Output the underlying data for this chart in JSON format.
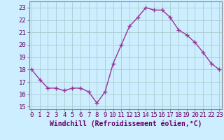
{
  "x": [
    0,
    1,
    2,
    3,
    4,
    5,
    6,
    7,
    8,
    9,
    10,
    11,
    12,
    13,
    14,
    15,
    16,
    17,
    18,
    19,
    20,
    21,
    22,
    23
  ],
  "y": [
    18.0,
    17.2,
    16.5,
    16.5,
    16.3,
    16.5,
    16.5,
    16.2,
    15.3,
    16.2,
    18.5,
    20.0,
    21.5,
    22.2,
    23.0,
    22.8,
    22.8,
    22.2,
    21.2,
    20.8,
    20.2,
    19.4,
    18.5,
    18.0
  ],
  "line_color": "#993399",
  "marker": "+",
  "marker_size": 4,
  "linewidth": 1.0,
  "background_color": "#cceeff",
  "grid_color": "#aacccc",
  "xlabel": "Windchill (Refroidissement éolien,°C)",
  "tick_fontsize": 6.5,
  "xlabel_fontsize": 7,
  "ylim": [
    14.8,
    23.5
  ],
  "yticks": [
    15,
    16,
    17,
    18,
    19,
    20,
    21,
    22,
    23
  ],
  "xticks": [
    0,
    1,
    2,
    3,
    4,
    5,
    6,
    7,
    8,
    9,
    10,
    11,
    12,
    13,
    14,
    15,
    16,
    17,
    18,
    19,
    20,
    21,
    22,
    23
  ],
  "xlim": [
    -0.3,
    23.3
  ]
}
